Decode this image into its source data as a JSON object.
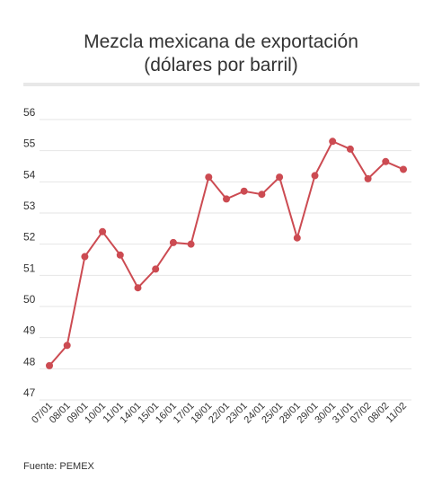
{
  "header": {
    "title_line1": "Mezcla mexicana de exportación",
    "title_line2": "(dólares por barril)"
  },
  "footer": {
    "source": "Fuente: PEMEX"
  },
  "colors": {
    "series": "#cc4b52",
    "grid": "#e6e6e6",
    "text": "#333333"
  },
  "chart_data": {
    "type": "line",
    "title": "Mezcla mexicana de exportación (dólares por barril)",
    "xlabel": "",
    "ylabel": "",
    "ylim": [
      47,
      56
    ],
    "yticks": [
      47,
      48,
      49,
      50,
      51,
      52,
      53,
      54,
      55,
      56
    ],
    "grid": true,
    "legend": "none",
    "categories": [
      "07/01",
      "08/01",
      "09/01",
      "10/01",
      "11/01",
      "14/01",
      "15/01",
      "16/01",
      "17/01",
      "18/01",
      "22/01",
      "23/01",
      "24/01",
      "25/01",
      "28/01",
      "29/01",
      "30/01",
      "31/01",
      "07/02",
      "08/02",
      "11/02"
    ],
    "values": [
      48.1,
      48.75,
      51.6,
      52.4,
      51.65,
      50.6,
      51.2,
      52.05,
      52.0,
      54.15,
      53.45,
      53.7,
      53.6,
      54.15,
      52.2,
      54.2,
      55.3,
      55.05,
      54.1,
      54.65,
      54.4
    ]
  }
}
